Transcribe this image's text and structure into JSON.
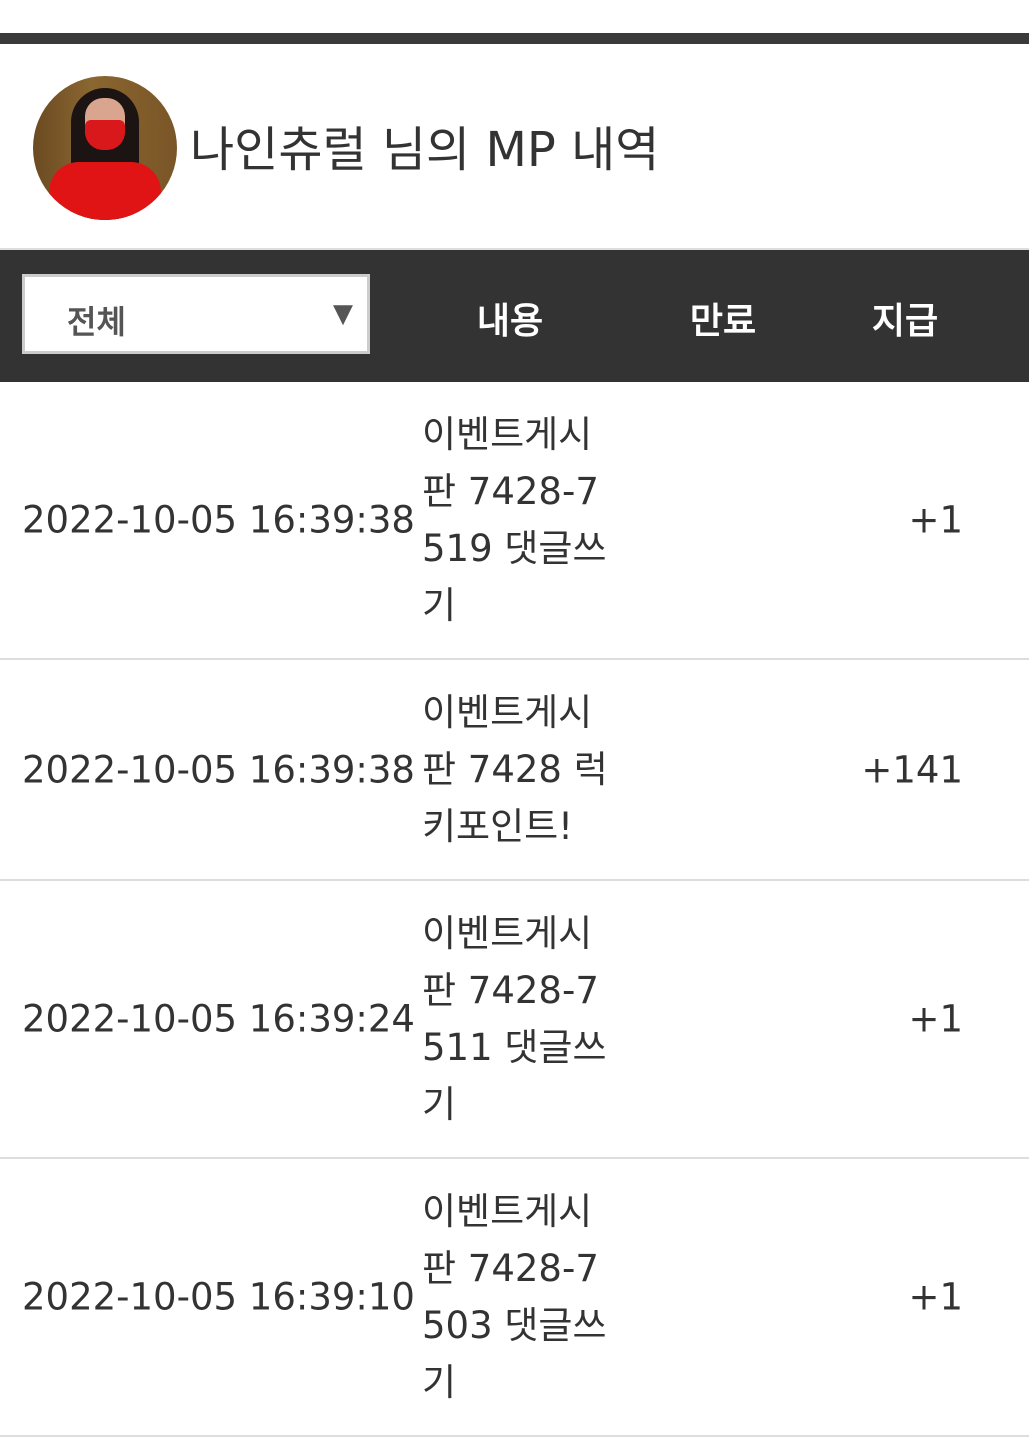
{
  "profile": {
    "title": "나인츄럴 님의 MP 내역"
  },
  "table": {
    "filter": {
      "selected": "전체"
    },
    "headers": {
      "content": "내용",
      "expiry": "만료",
      "amount": "지급"
    },
    "rows": [
      {
        "date": "2022-10-05 16:39:38",
        "content": "이벤트게시판 7428-7519 댓글쓰기",
        "expiry": "",
        "amount": "+1"
      },
      {
        "date": "2022-10-05 16:39:38",
        "content": "이벤트게시판 7428 럭키포인트!",
        "expiry": "",
        "amount": "+141"
      },
      {
        "date": "2022-10-05 16:39:24",
        "content": "이벤트게시판 7428-7511 댓글쓰기",
        "expiry": "",
        "amount": "+1"
      },
      {
        "date": "2022-10-05 16:39:10",
        "content": "이벤트게시판 7428-7503 댓글쓰기",
        "expiry": "",
        "amount": "+1"
      }
    ]
  }
}
